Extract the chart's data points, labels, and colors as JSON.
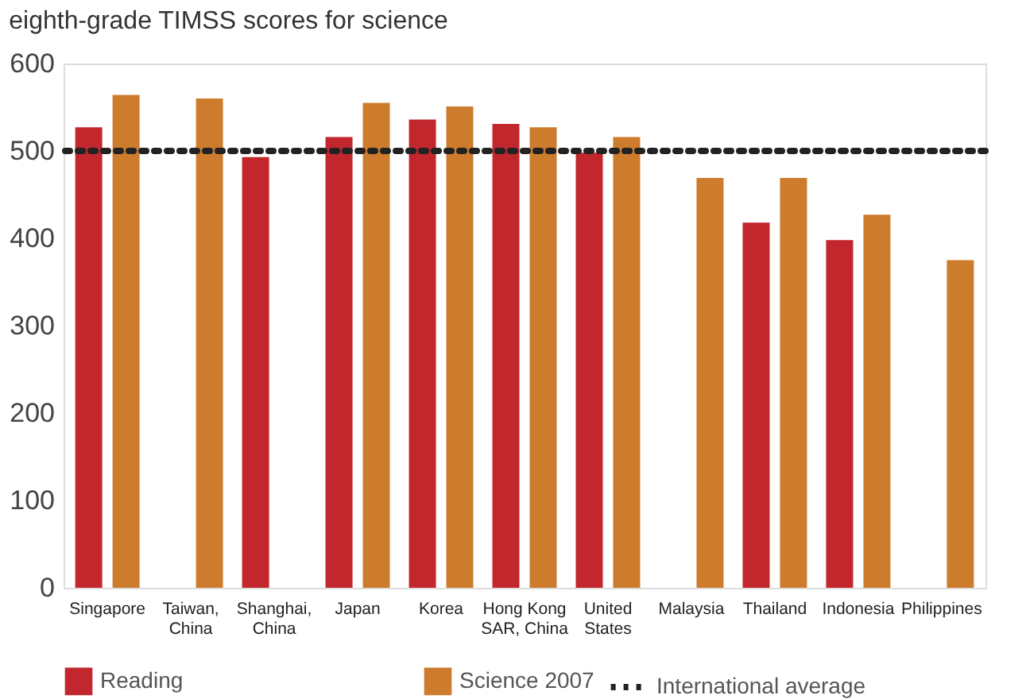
{
  "chart_data": {
    "type": "bar",
    "title": "eighth-grade TIMSS scores for science",
    "categories": [
      "Singapore",
      "Taiwan, China",
      "Shanghai, China",
      "Japan",
      "Korea",
      "Hong Kong SAR, China",
      "United States",
      "Malaysia",
      "Thailand",
      "Indonesia",
      "Philippines"
    ],
    "series": [
      {
        "name": "Reading",
        "color": "#c1272d",
        "values": [
          527,
          null,
          493,
          516,
          536,
          531,
          498,
          null,
          418,
          398,
          null
        ]
      },
      {
        "name": "Science 2007",
        "color": "#cd7c2d",
        "values": [
          564,
          560,
          null,
          555,
          551,
          527,
          516,
          469,
          469,
          427,
          375
        ]
      }
    ],
    "ref_lines": [
      {
        "axis": "y",
        "value": 500,
        "label": "International average",
        "color": "#222222",
        "line_style": "dotted"
      }
    ],
    "ylim": [
      0,
      600
    ],
    "yticks": [
      0,
      100,
      200,
      300,
      400,
      500,
      600
    ],
    "grid": false,
    "legend": "bottom"
  }
}
